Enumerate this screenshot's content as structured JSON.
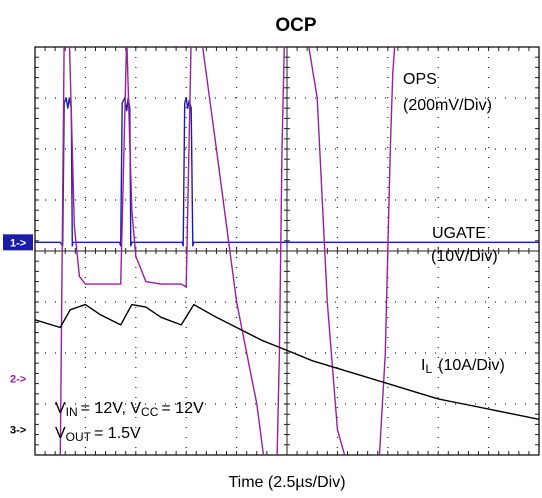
{
  "chart_data": {
    "type": "line",
    "title": "OCP",
    "xlabel": "Time (2.5µs/Div)",
    "divisions": {
      "x": 10,
      "y": 8
    },
    "labels": {
      "ops": "OPS",
      "ops_scale": "(200mV/Div)",
      "ugate": "UGATE",
      "ugate_scale": "(10V/Div)",
      "il_main": "I",
      "il_sub": "L",
      "il_scale": "(10A/Div)",
      "vin_v": "V",
      "vin_sub": "IN",
      "vin_eq": "= 12V, V",
      "vcc_sub": "CC",
      "vcc_eq": "= 12V",
      "vout_v": "V",
      "vout_sub": "OUT",
      "vout_eq": "= 1.5V"
    },
    "markers": [
      {
        "label": "1->",
        "level_div": 3.83
      },
      {
        "label": "2->",
        "level_div": 6.5
      },
      {
        "label": "3->",
        "level_div": 7.5
      }
    ],
    "colors": {
      "ch1": "#1c1ca8",
      "ch2": "#9b1f9b",
      "ch3": "#000000",
      "grid": "#222222"
    },
    "series": [
      {
        "name": "UGATE",
        "color": "#1c1ca8",
        "x": [
          0,
          0.5,
          0.55,
          0.58,
          0.62,
          0.65,
          0.68,
          0.72,
          0.74,
          0.75,
          1.3,
          1.68,
          1.7,
          1.73,
          1.78,
          1.82,
          1.85,
          1.88,
          1.9,
          1.92,
          2.5,
          2.92,
          2.94,
          2.97,
          3.0,
          3.03,
          3.06,
          3.1,
          3.13,
          3.15,
          3.5,
          10
        ],
        "y": [
          3.83,
          3.83,
          3.9,
          1.1,
          1.0,
          1.2,
          1.0,
          1.2,
          3.9,
          3.83,
          3.83,
          3.83,
          3.9,
          1.1,
          1.0,
          1.25,
          1.0,
          1.2,
          3.9,
          3.83,
          3.83,
          3.83,
          3.9,
          1.1,
          1.0,
          1.2,
          1.05,
          1.2,
          3.9,
          3.83,
          3.83,
          3.83
        ]
      },
      {
        "name": "OPS",
        "color": "#9b1f9b",
        "x": [
          0,
          0.3,
          0.5,
          0.58,
          0.68,
          0.78,
          0.88,
          1.0,
          1.2,
          1.5,
          1.7,
          1.82,
          1.92,
          2.0,
          2.2,
          2.5,
          2.7,
          2.9,
          3.0,
          3.1,
          3.3,
          3.6,
          4.0,
          4.4,
          4.6,
          4.72,
          4.8,
          4.85,
          4.9,
          4.95,
          5.0,
          5.2,
          5.4,
          5.6,
          5.8,
          6.0,
          6.2,
          6.5,
          6.8,
          6.95,
          7.05,
          7.1,
          7.15,
          7.2
        ],
        "y": [
          8.2,
          8.2,
          8.2,
          -0.2,
          -0.2,
          3.5,
          4.5,
          4.65,
          4.65,
          4.65,
          4.65,
          -0.2,
          3.2,
          4.1,
          4.6,
          4.65,
          4.65,
          4.65,
          4.7,
          -0.2,
          -0.2,
          2.0,
          5.0,
          7.0,
          8.5,
          8.5,
          8.2,
          6.0,
          2.0,
          -0.2,
          -0.2,
          -0.2,
          -0.2,
          1.0,
          5.0,
          7.5,
          8.2,
          8.5,
          8.6,
          6.0,
          2.0,
          0.5,
          -0.2,
          -0.2
        ]
      },
      {
        "name": "IL",
        "color": "#000000",
        "x": [
          0,
          0.5,
          0.7,
          1.0,
          1.3,
          1.7,
          1.92,
          2.2,
          2.5,
          2.9,
          3.15,
          3.6,
          4.0,
          4.5,
          5.0,
          5.5,
          6.0,
          6.5,
          7.0,
          7.5,
          8.0,
          8.5,
          9.0,
          9.5,
          10
        ],
        "y": [
          5.35,
          5.5,
          5.15,
          5.05,
          5.25,
          5.45,
          5.05,
          5.1,
          5.3,
          5.45,
          5.05,
          5.3,
          5.5,
          5.75,
          5.95,
          6.15,
          6.3,
          6.45,
          6.6,
          6.75,
          6.9,
          7.0,
          7.1,
          7.2,
          7.3
        ]
      }
    ]
  }
}
